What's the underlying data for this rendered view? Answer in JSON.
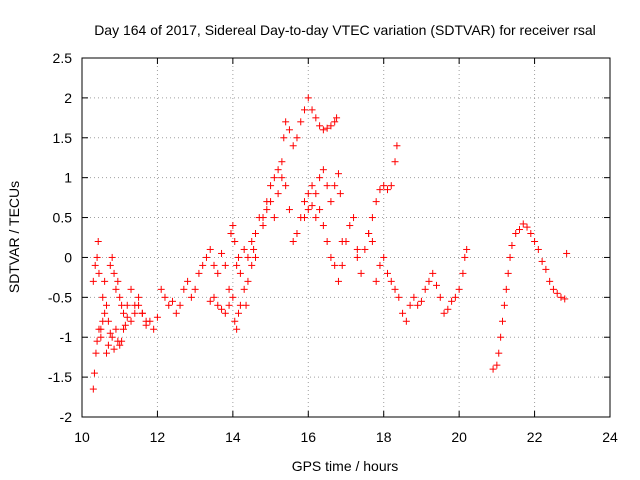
{
  "chart_data": {
    "type": "scatter",
    "title": "Day 164 of 2017, Sidereal Day-to-day VTEC variation (SDTVAR) for receiver rsal",
    "xlabel": "GPS time / hours",
    "ylabel": "SDTVAR / TECUs",
    "xlim": [
      10,
      24
    ],
    "ylim": [
      -2,
      2.5
    ],
    "xticks": [
      "10",
      "12",
      "14",
      "16",
      "18",
      "20",
      "22",
      "24"
    ],
    "yticks": [
      "2.5",
      "2",
      "1.5",
      "1",
      "0.5",
      "0",
      "-0.5",
      "-1",
      "-1.5",
      "-2"
    ],
    "grid": true,
    "marker": "+",
    "color": "#ff0000",
    "series": [
      {
        "name": "SDTVAR",
        "points": [
          [
            10.3,
            -0.3
          ],
          [
            10.35,
            -0.1
          ],
          [
            10.4,
            0.0
          ],
          [
            10.43,
            0.2
          ],
          [
            10.45,
            -0.2
          ],
          [
            10.5,
            -0.9
          ],
          [
            10.55,
            -0.5
          ],
          [
            10.6,
            -0.3
          ],
          [
            10.65,
            -0.6
          ],
          [
            10.7,
            -0.8
          ],
          [
            10.75,
            -0.1
          ],
          [
            10.8,
            0.0
          ],
          [
            10.85,
            -0.2
          ],
          [
            10.9,
            -0.4
          ],
          [
            10.95,
            -0.3
          ],
          [
            11.0,
            -0.5
          ],
          [
            11.05,
            -0.6
          ],
          [
            11.1,
            -0.7
          ],
          [
            11.2,
            -0.6
          ],
          [
            11.3,
            -0.4
          ],
          [
            11.4,
            -0.7
          ],
          [
            11.5,
            -0.6
          ],
          [
            11.6,
            -0.7
          ],
          [
            11.7,
            -0.8
          ],
          [
            10.3,
            -1.65
          ],
          [
            10.33,
            -1.45
          ],
          [
            10.37,
            -1.2
          ],
          [
            10.4,
            -1.05
          ],
          [
            10.45,
            -0.9
          ],
          [
            10.5,
            -1.0
          ],
          [
            10.55,
            -0.8
          ],
          [
            10.6,
            -0.7
          ],
          [
            10.65,
            -1.2
          ],
          [
            10.7,
            -1.1
          ],
          [
            10.75,
            -0.95
          ],
          [
            10.8,
            -1.0
          ],
          [
            10.85,
            -1.15
          ],
          [
            10.9,
            -0.9
          ],
          [
            10.95,
            -1.05
          ],
          [
            11.0,
            -1.1
          ],
          [
            11.05,
            -1.05
          ],
          [
            11.1,
            -0.9
          ],
          [
            11.15,
            -0.85
          ],
          [
            11.2,
            -0.75
          ],
          [
            11.3,
            -0.8
          ],
          [
            11.4,
            -0.6
          ],
          [
            11.5,
            -0.5
          ],
          [
            11.6,
            -0.7
          ],
          [
            11.7,
            -0.85
          ],
          [
            11.8,
            -0.8
          ],
          [
            11.9,
            -0.9
          ],
          [
            12.0,
            -0.75
          ],
          [
            12.1,
            -0.4
          ],
          [
            12.2,
            -0.5
          ],
          [
            12.3,
            -0.6
          ],
          [
            12.4,
            -0.55
          ],
          [
            12.5,
            -0.7
          ],
          [
            12.6,
            -0.6
          ],
          [
            12.7,
            -0.4
          ],
          [
            12.8,
            -0.3
          ],
          [
            12.9,
            -0.5
          ],
          [
            13.0,
            -0.4
          ],
          [
            13.1,
            -0.2
          ],
          [
            13.2,
            -0.1
          ],
          [
            13.3,
            0.0
          ],
          [
            13.4,
            0.1
          ],
          [
            13.5,
            -0.1
          ],
          [
            13.6,
            -0.2
          ],
          [
            13.7,
            0.05
          ],
          [
            13.8,
            -0.1
          ],
          [
            13.9,
            -0.4
          ],
          [
            13.4,
            -0.55
          ],
          [
            13.5,
            -0.5
          ],
          [
            13.6,
            -0.6
          ],
          [
            13.7,
            -0.65
          ],
          [
            13.8,
            -0.7
          ],
          [
            13.9,
            -0.6
          ],
          [
            14.0,
            -0.5
          ],
          [
            14.05,
            -0.8
          ],
          [
            14.1,
            -0.9
          ],
          [
            14.15,
            -0.7
          ],
          [
            14.2,
            -0.6
          ],
          [
            14.3,
            -0.4
          ],
          [
            14.35,
            -0.6
          ],
          [
            14.4,
            -0.3
          ],
          [
            14.5,
            -0.1
          ],
          [
            14.55,
            0.1
          ],
          [
            14.6,
            0.0
          ],
          [
            13.95,
            0.3
          ],
          [
            14.0,
            0.4
          ],
          [
            14.05,
            0.2
          ],
          [
            14.1,
            -0.1
          ],
          [
            14.15,
            0.0
          ],
          [
            14.2,
            -0.2
          ],
          [
            14.3,
            0.1
          ],
          [
            14.4,
            0.0
          ],
          [
            14.5,
            0.2
          ],
          [
            14.6,
            0.3
          ],
          [
            14.7,
            0.5
          ],
          [
            14.8,
            0.4
          ],
          [
            14.9,
            0.6
          ],
          [
            15.0,
            0.7
          ],
          [
            15.1,
            0.5
          ],
          [
            15.2,
            0.8
          ],
          [
            15.3,
            1.2
          ],
          [
            15.35,
            1.5
          ],
          [
            15.4,
            1.7
          ],
          [
            15.5,
            1.6
          ],
          [
            15.6,
            1.4
          ],
          [
            15.7,
            1.5
          ],
          [
            15.8,
            1.7
          ],
          [
            15.9,
            1.85
          ],
          [
            16.0,
            2.0
          ],
          [
            16.1,
            1.85
          ],
          [
            16.2,
            1.75
          ],
          [
            16.3,
            1.65
          ],
          [
            16.4,
            1.6
          ],
          [
            16.5,
            1.62
          ],
          [
            16.6,
            1.65
          ],
          [
            16.7,
            1.7
          ],
          [
            16.75,
            1.75
          ],
          [
            14.8,
            0.5
          ],
          [
            14.9,
            0.7
          ],
          [
            15.0,
            0.9
          ],
          [
            15.1,
            1.0
          ],
          [
            15.2,
            1.1
          ],
          [
            15.3,
            1.0
          ],
          [
            15.4,
            0.9
          ],
          [
            15.5,
            0.6
          ],
          [
            15.6,
            0.2
          ],
          [
            15.7,
            0.3
          ],
          [
            15.8,
            0.5
          ],
          [
            15.9,
            0.7
          ],
          [
            16.0,
            0.8
          ],
          [
            16.1,
            0.65
          ],
          [
            16.2,
            0.5
          ],
          [
            16.3,
            0.6
          ],
          [
            16.4,
            0.4
          ],
          [
            16.5,
            0.2
          ],
          [
            16.6,
            0.0
          ],
          [
            16.7,
            -0.1
          ],
          [
            16.8,
            -0.3
          ],
          [
            16.9,
            -0.1
          ],
          [
            17.0,
            0.2
          ],
          [
            17.1,
            0.4
          ],
          [
            17.2,
            0.5
          ],
          [
            17.3,
            0.1
          ],
          [
            15.9,
            0.5
          ],
          [
            16.0,
            0.6
          ],
          [
            16.1,
            0.9
          ],
          [
            16.2,
            0.8
          ],
          [
            16.3,
            1.0
          ],
          [
            16.4,
            1.1
          ],
          [
            16.5,
            0.9
          ],
          [
            16.6,
            0.7
          ],
          [
            16.7,
            0.9
          ],
          [
            16.8,
            1.05
          ],
          [
            16.85,
            0.8
          ],
          [
            16.9,
            0.2
          ],
          [
            17.3,
            0.0
          ],
          [
            17.4,
            -0.2
          ],
          [
            17.5,
            0.1
          ],
          [
            17.6,
            0.3
          ],
          [
            17.7,
            0.2
          ],
          [
            17.8,
            -0.3
          ],
          [
            17.9,
            -0.1
          ],
          [
            18.0,
            0.0
          ],
          [
            18.1,
            -0.2
          ],
          [
            18.2,
            -0.3
          ],
          [
            18.3,
            -0.4
          ],
          [
            18.4,
            -0.5
          ],
          [
            18.5,
            -0.7
          ],
          [
            18.6,
            -0.8
          ],
          [
            18.7,
            -0.6
          ],
          [
            18.8,
            -0.5
          ],
          [
            18.9,
            -0.6
          ],
          [
            19.0,
            -0.55
          ],
          [
            19.1,
            -0.4
          ],
          [
            19.2,
            -0.3
          ],
          [
            19.3,
            -0.2
          ],
          [
            19.4,
            -0.35
          ],
          [
            19.5,
            -0.5
          ],
          [
            19.6,
            -0.7
          ],
          [
            19.7,
            -0.65
          ],
          [
            19.8,
            -0.55
          ],
          [
            19.9,
            -0.5
          ],
          [
            20.0,
            -0.4
          ],
          [
            20.1,
            -0.2
          ],
          [
            20.15,
            0.0
          ],
          [
            20.2,
            0.1
          ],
          [
            17.6,
            0.3
          ],
          [
            17.7,
            0.5
          ],
          [
            17.8,
            0.7
          ],
          [
            17.9,
            0.85
          ],
          [
            18.0,
            0.9
          ],
          [
            18.1,
            0.85
          ],
          [
            18.2,
            0.9
          ],
          [
            18.3,
            1.2
          ],
          [
            18.35,
            1.4
          ],
          [
            20.9,
            -1.4
          ],
          [
            21.0,
            -1.35
          ],
          [
            21.05,
            -1.2
          ],
          [
            21.1,
            -1.0
          ],
          [
            21.15,
            -0.8
          ],
          [
            21.2,
            -0.6
          ],
          [
            21.25,
            -0.4
          ],
          [
            21.3,
            -0.2
          ],
          [
            21.35,
            0.0
          ],
          [
            21.4,
            0.15
          ],
          [
            21.5,
            0.3
          ],
          [
            21.6,
            0.35
          ],
          [
            21.7,
            0.42
          ],
          [
            21.8,
            0.38
          ],
          [
            21.9,
            0.3
          ],
          [
            22.0,
            0.2
          ],
          [
            22.1,
            0.1
          ],
          [
            22.2,
            -0.05
          ],
          [
            22.3,
            -0.15
          ],
          [
            22.4,
            -0.3
          ],
          [
            22.5,
            -0.4
          ],
          [
            22.6,
            -0.45
          ],
          [
            22.7,
            -0.5
          ],
          [
            22.8,
            -0.52
          ],
          [
            22.85,
            0.05
          ]
        ]
      }
    ]
  }
}
